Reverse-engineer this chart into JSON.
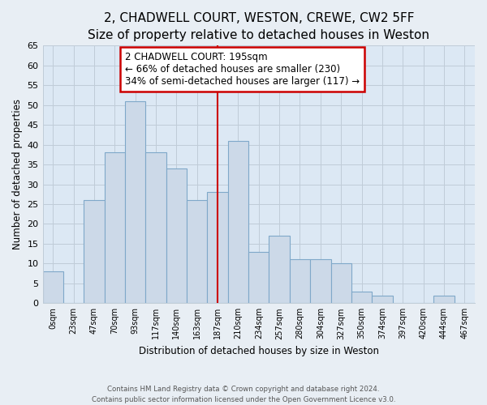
{
  "title": "2, CHADWELL COURT, WESTON, CREWE, CW2 5FF",
  "subtitle": "Size of property relative to detached houses in Weston",
  "xlabel": "Distribution of detached houses by size in Weston",
  "ylabel": "Number of detached properties",
  "bar_labels": [
    "0sqm",
    "23sqm",
    "47sqm",
    "70sqm",
    "93sqm",
    "117sqm",
    "140sqm",
    "163sqm",
    "187sqm",
    "210sqm",
    "234sqm",
    "257sqm",
    "280sqm",
    "304sqm",
    "327sqm",
    "350sqm",
    "374sqm",
    "397sqm",
    "420sqm",
    "444sqm",
    "467sqm"
  ],
  "bar_values": [
    8,
    0,
    26,
    38,
    51,
    38,
    34,
    26,
    28,
    41,
    13,
    17,
    11,
    11,
    10,
    3,
    2,
    0,
    0,
    2,
    0
  ],
  "bar_color": "#ccd9e8",
  "bar_edge_color": "#7fa8c9",
  "ylim": [
    0,
    65
  ],
  "yticks": [
    0,
    5,
    10,
    15,
    20,
    25,
    30,
    35,
    40,
    45,
    50,
    55,
    60,
    65
  ],
  "marker_bar_index": 8,
  "annotation_line1": "2 CHADWELL COURT: 195sqm",
  "annotation_line2": "← 66% of detached houses are smaller (230)",
  "annotation_line3": "34% of semi-detached houses are larger (117) →",
  "footer1": "Contains HM Land Registry data © Crown copyright and database right 2024.",
  "footer2": "Contains public sector information licensed under the Open Government Licence v3.0.",
  "bg_color": "#e8eef4",
  "plot_bg_color": "#dce8f4",
  "grid_color": "#c0ccd8",
  "title_fontsize": 11,
  "subtitle_fontsize": 9.5
}
